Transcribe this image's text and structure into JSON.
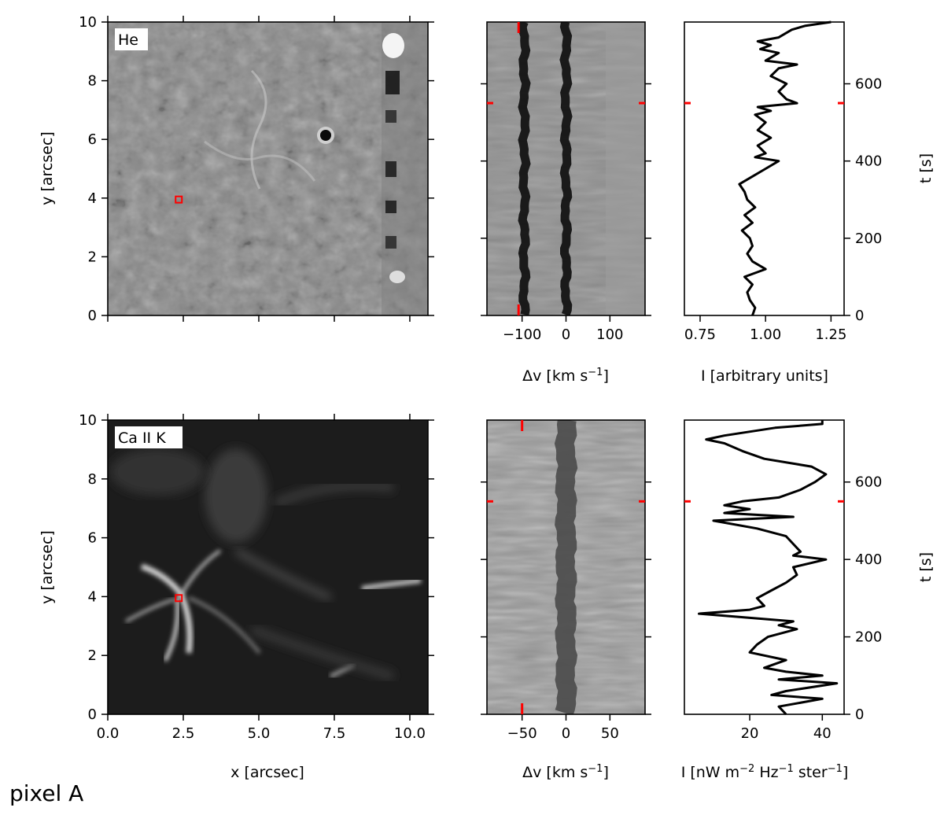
{
  "figure_label": "pixel A",
  "colors": {
    "marker": "#ff0000",
    "curve": "#000000"
  },
  "chart_data": [
    {
      "type": "heatmap",
      "id": "he-image",
      "panel_label": "He",
      "xlabel": "",
      "ylabel": "y [arcsec]",
      "xlim": [
        0,
        10.6
      ],
      "ylim": [
        0,
        10
      ],
      "xticks": [
        0.0,
        2.5,
        5.0,
        7.5,
        10.0
      ],
      "yticks": [
        0,
        2,
        4,
        6,
        8,
        10
      ],
      "ytick_labels": [
        "0",
        "2",
        "4",
        "6",
        "8",
        "10"
      ],
      "marker": {
        "x": 2.35,
        "y": 3.95
      },
      "colormap": "gray"
    },
    {
      "type": "heatmap",
      "id": "he-spectrum-time",
      "xlabel": "Δv [km s⁻¹]",
      "xlim": [
        -180,
        180
      ],
      "xticks": [
        -100,
        0,
        100
      ],
      "xtick_labels": [
        "−100",
        "0",
        "100"
      ],
      "ylim": [
        0,
        760
      ],
      "yticks": [
        0,
        200,
        400,
        600
      ],
      "time_marker": 550,
      "velocity_marker": -108,
      "dark_lanes": [
        -95,
        0
      ],
      "colormap": "gray"
    },
    {
      "type": "line",
      "id": "he-lightcurve",
      "xlabel": "I [arbitrary units]",
      "ylabel": "t [s]",
      "xlim": [
        0.69,
        1.3
      ],
      "xticks": [
        0.75,
        1.0,
        1.25
      ],
      "xtick_labels": [
        "0.75",
        "1.00",
        "1.25"
      ],
      "ylim": [
        0,
        760
      ],
      "yticks": [
        0,
        200,
        400,
        600
      ],
      "ytick_labels": [
        "0",
        "200",
        "400",
        "600"
      ],
      "time_marker": 550,
      "t": [
        0,
        20,
        40,
        60,
        80,
        100,
        120,
        140,
        160,
        180,
        200,
        220,
        240,
        260,
        280,
        300,
        320,
        340,
        360,
        380,
        400,
        410,
        420,
        440,
        460,
        480,
        500,
        520,
        530,
        540,
        550,
        560,
        580,
        600,
        620,
        640,
        650,
        660,
        680,
        690,
        700,
        710,
        720,
        740,
        750,
        760
      ],
      "values": [
        0.95,
        0.96,
        0.94,
        0.93,
        0.95,
        0.92,
        1.0,
        0.95,
        0.93,
        0.95,
        0.94,
        0.91,
        0.95,
        0.92,
        0.96,
        0.93,
        0.92,
        0.9,
        0.95,
        1.0,
        1.05,
        0.96,
        1.0,
        0.97,
        1.02,
        0.97,
        1.0,
        0.96,
        1.02,
        0.97,
        1.12,
        1.08,
        1.05,
        1.08,
        1.02,
        1.05,
        1.12,
        1.0,
        1.05,
        0.98,
        1.02,
        0.97,
        1.05,
        1.1,
        1.15,
        1.25
      ]
    },
    {
      "type": "heatmap",
      "id": "ca-image",
      "panel_label": "Ca II K",
      "xlabel": "x [arcsec]",
      "ylabel": "y [arcsec]",
      "xlim": [
        0,
        10.6
      ],
      "ylim": [
        0,
        10
      ],
      "xticks": [
        0.0,
        2.5,
        5.0,
        7.5,
        10.0
      ],
      "xtick_labels": [
        "0.0",
        "2.5",
        "5.0",
        "7.5",
        "10.0"
      ],
      "yticks": [
        0,
        2,
        4,
        6,
        8,
        10
      ],
      "ytick_labels": [
        "0",
        "2",
        "4",
        "6",
        "8",
        "10"
      ],
      "marker": {
        "x": 2.35,
        "y": 3.95
      },
      "colormap": "gray"
    },
    {
      "type": "heatmap",
      "id": "ca-spectrum-time",
      "xlabel": "Δv [km s⁻¹]",
      "xlim": [
        -90,
        90
      ],
      "xticks": [
        -50,
        0,
        50
      ],
      "xtick_labels": [
        "−50",
        "0",
        "50"
      ],
      "ylim": [
        0,
        760
      ],
      "yticks": [
        0,
        200,
        400,
        600
      ],
      "time_marker": 550,
      "velocity_marker": -50,
      "dark_lanes": [
        0
      ],
      "colormap": "gray"
    },
    {
      "type": "line",
      "id": "ca-lightcurve",
      "xlabel": "I [nW m⁻² Hz⁻¹ ster⁻¹]",
      "ylabel": "t [s]",
      "xlim": [
        2,
        46
      ],
      "xticks": [
        20,
        40
      ],
      "xtick_labels": [
        "20",
        "40"
      ],
      "ylim": [
        0,
        760
      ],
      "yticks": [
        0,
        200,
        400,
        600
      ],
      "ytick_labels": [
        "0",
        "200",
        "400",
        "600"
      ],
      "time_marker": 550,
      "t": [
        0,
        20,
        40,
        50,
        60,
        80,
        90,
        100,
        110,
        120,
        140,
        160,
        180,
        200,
        220,
        230,
        240,
        260,
        270,
        280,
        300,
        320,
        340,
        360,
        380,
        400,
        410,
        420,
        440,
        460,
        480,
        500,
        510,
        520,
        530,
        540,
        550,
        560,
        580,
        600,
        620,
        640,
        660,
        680,
        700,
        710,
        720,
        740,
        750,
        760
      ],
      "values": [
        30,
        28,
        40,
        26,
        30,
        44,
        28,
        40,
        30,
        24,
        30,
        20,
        22,
        25,
        33,
        28,
        32,
        6,
        20,
        24,
        22,
        26,
        30,
        33,
        32,
        41,
        32,
        34,
        32,
        30,
        22,
        10,
        32,
        13,
        20,
        13,
        18,
        28,
        34,
        38,
        41,
        37,
        24,
        18,
        13,
        8,
        13,
        27,
        40,
        40
      ]
    }
  ]
}
